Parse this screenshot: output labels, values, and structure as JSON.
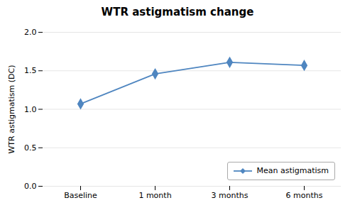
{
  "chart_data": {
    "type": "line",
    "title": "WTR astigmatism change",
    "ylabel": "WTR astigmatism (DC)",
    "categories": [
      "Baseline",
      "1 month",
      "3 months",
      "6 months"
    ],
    "series": [
      {
        "name": "Mean astigmatism",
        "color": "#4f86c0",
        "marker": "diamond",
        "values": [
          1.07,
          1.46,
          1.61,
          1.57
        ]
      }
    ],
    "ylim": [
      0,
      2.0
    ],
    "yticks": [
      {
        "value": 0,
        "label": "0.0"
      },
      0.5,
      {
        "value": 1.0,
        "label": "1.0"
      },
      1.5,
      {
        "value": 2.0,
        "label": "2.0"
      }
    ],
    "grid": true,
    "legend": "lower right"
  }
}
